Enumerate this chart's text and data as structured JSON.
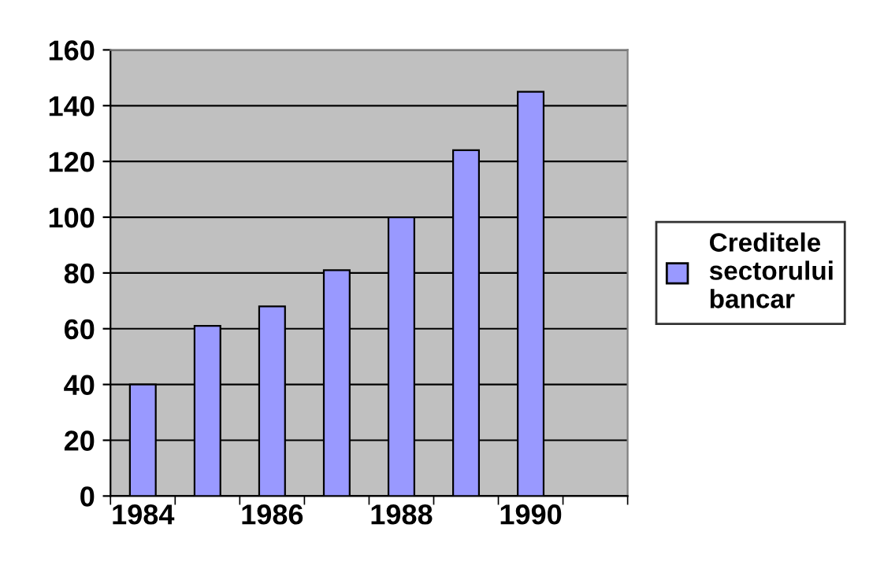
{
  "chart_data": {
    "type": "bar",
    "categories": [
      "1984",
      null,
      "1986",
      null,
      "1988",
      null,
      "1990",
      null
    ],
    "series": [
      {
        "name": "Creditele sectorului bancar",
        "color": "#9999ff",
        "values": [
          40,
          61,
          68,
          81,
          100,
          124,
          145,
          null
        ]
      }
    ],
    "ylim": [
      0,
      160
    ],
    "yticks": [
      0,
      20,
      40,
      60,
      80,
      100,
      120,
      140,
      160
    ],
    "grid": "y",
    "legend": "right"
  }
}
